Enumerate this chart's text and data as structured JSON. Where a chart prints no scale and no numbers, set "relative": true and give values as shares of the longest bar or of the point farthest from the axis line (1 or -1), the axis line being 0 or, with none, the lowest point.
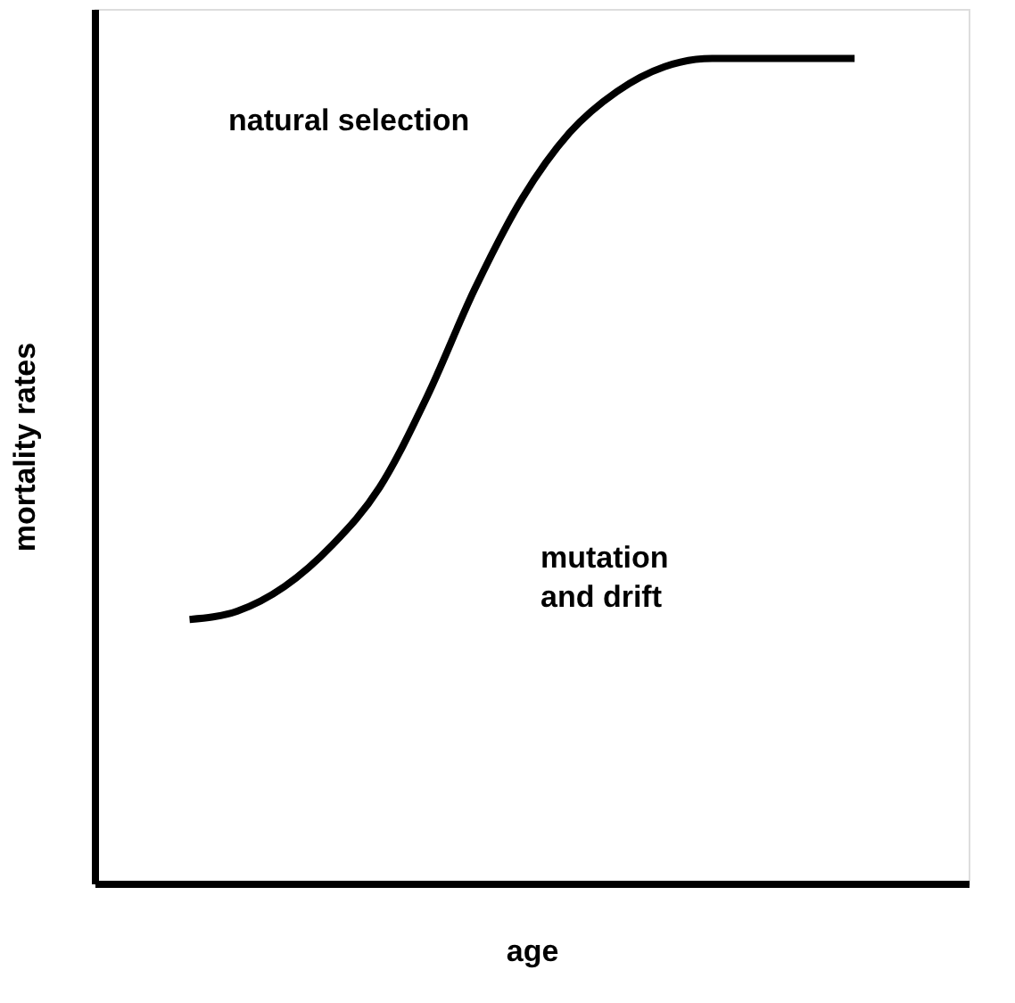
{
  "chart_data": {
    "type": "line",
    "relative": true,
    "xlabel": "age",
    "ylabel": "mortality rates",
    "categories": [
      null,
      null,
      null,
      null,
      null,
      null,
      null,
      null,
      null,
      null,
      null,
      null,
      null,
      null,
      null
    ],
    "series": [
      {
        "color": "#000000",
        "values": [
          0.32,
          0.33,
          0.36,
          0.41,
          0.48,
          0.59,
          0.72,
          0.83,
          0.91,
          0.96,
          0.99,
          1,
          1,
          1,
          1
        ]
      }
    ],
    "annotations": [
      "natural selection",
      "mutation\nand drift"
    ],
    "grid": false,
    "marker": "none",
    "line_style": "solid",
    "tick_labels": false
  }
}
